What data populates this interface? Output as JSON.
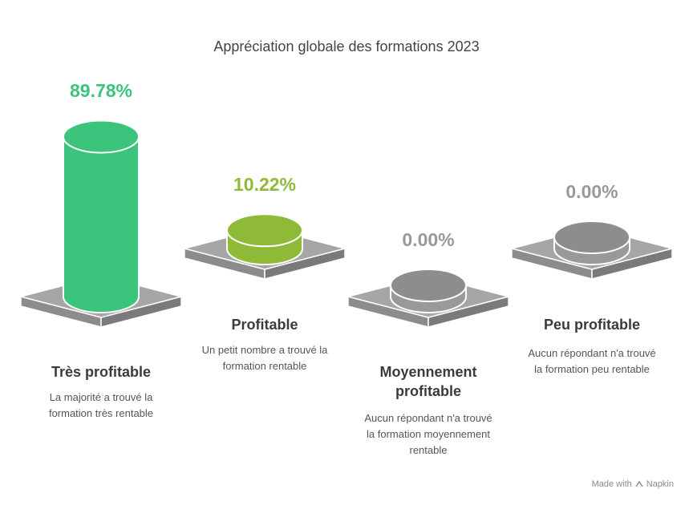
{
  "chart_data": {
    "type": "bar",
    "title": "Appréciation globale des formations 2023",
    "categories": [
      "Très profitable",
      "Profitable",
      "Moyennement profitable",
      "Peu profitable"
    ],
    "values": [
      89.78,
      10.22,
      0.0,
      0.0
    ],
    "value_labels": [
      "89.78%",
      "10.22%",
      "0.00%",
      "0.00%"
    ],
    "descriptions": [
      "La majorité a trouvé la formation très rentable",
      "Un petit nombre a trouvé la formation rentable",
      "Aucun répondant n'a trouvé la formation moyennement rentable",
      "Aucun répondant n'a trouvé la formation peu rentable"
    ],
    "colors": [
      "#3cc47d",
      "#8fba38",
      "#999999",
      "#999999"
    ],
    "label_colors": [
      "#3cc47d",
      "#8fba38",
      "#999999",
      "#999999"
    ],
    "unit": "%"
  },
  "watermark": {
    "prefix": "Made with",
    "brand": "Napkin"
  }
}
